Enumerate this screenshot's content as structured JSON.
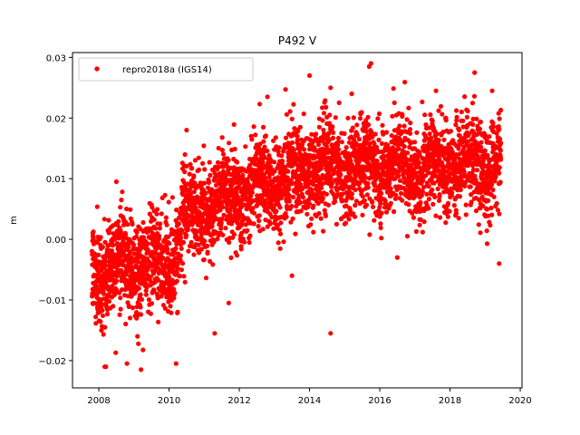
{
  "chart_data": {
    "type": "scatter",
    "title": "P492 V",
    "xlabel": "",
    "ylabel": "m",
    "xlim": [
      2007.25,
      2020.05
    ],
    "ylim": [
      -0.0245,
      0.0308
    ],
    "xticks": [
      2008,
      2010,
      2012,
      2014,
      2016,
      2018,
      2020
    ],
    "yticks": [
      -0.02,
      -0.01,
      0.0,
      0.01,
      0.02,
      0.03
    ],
    "xtick_labels": [
      "2008",
      "2010",
      "2012",
      "2014",
      "2016",
      "2018",
      "2020"
    ],
    "ytick_labels": [
      "−0.02",
      "−0.01",
      "0.00",
      "0.01",
      "0.02",
      "0.03"
    ],
    "grid": false,
    "legend_position": "upper-left",
    "series": [
      {
        "name": "repro2018a (IGS14)",
        "color": "#ff0000",
        "marker": "circle",
        "x_start": 2007.8,
        "x_end": 2019.45,
        "trend": [
          [
            2007.8,
            -0.005
          ],
          [
            2008.5,
            -0.004
          ],
          [
            2009.5,
            -0.004
          ],
          [
            2010.2,
            -0.003
          ],
          [
            2010.4,
            0.003
          ],
          [
            2011.0,
            0.005
          ],
          [
            2012.0,
            0.008
          ],
          [
            2013.0,
            0.009
          ],
          [
            2014.0,
            0.012
          ],
          [
            2015.0,
            0.012
          ],
          [
            2016.0,
            0.012
          ],
          [
            2017.0,
            0.011
          ],
          [
            2018.0,
            0.013
          ],
          [
            2019.45,
            0.012
          ]
        ],
        "scatter_std": 0.0045,
        "x": [
          2008.2,
          2008.5,
          2008.8,
          2009.1,
          2009.2,
          2010.2,
          2010.5,
          2011.3,
          2011.7,
          2012.8,
          2013.5,
          2014.0,
          2014.6,
          2014.6,
          2015.2,
          2015.7,
          2015.75,
          2016.5,
          2017.6,
          2018.7,
          2019.2,
          2019.4
        ],
        "y": [
          -0.021,
          0.0095,
          -0.0205,
          -0.016,
          -0.0215,
          -0.0205,
          0.018,
          -0.0155,
          -0.0105,
          0.0235,
          -0.006,
          0.027,
          0.025,
          -0.0155,
          0.024,
          0.0285,
          0.029,
          -0.003,
          0.0245,
          0.0275,
          0.0245,
          -0.004
        ]
      }
    ]
  }
}
